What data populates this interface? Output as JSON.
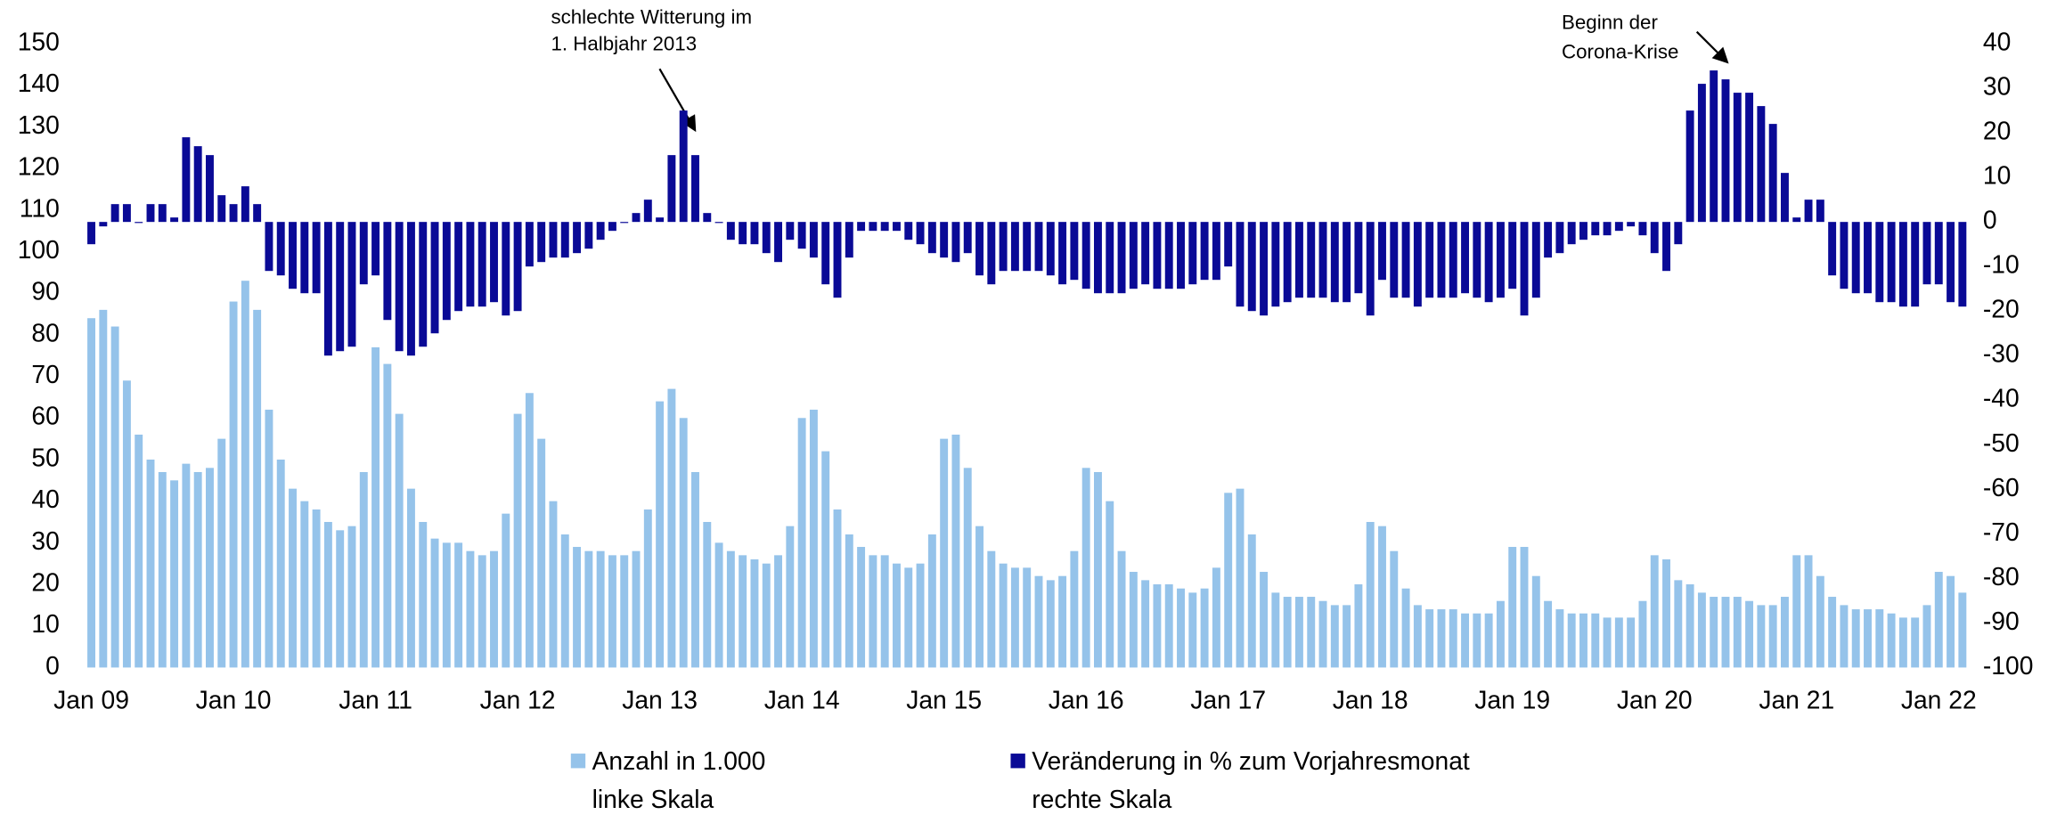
{
  "chart_data": {
    "type": "bar",
    "categories": [
      "Jan 09",
      null,
      null,
      null,
      null,
      null,
      null,
      null,
      null,
      null,
      null,
      null,
      "Jan 10",
      null,
      null,
      null,
      null,
      null,
      null,
      null,
      null,
      null,
      null,
      null,
      "Jan 11",
      null,
      null,
      null,
      null,
      null,
      null,
      null,
      null,
      null,
      null,
      null,
      "Jan 12",
      null,
      null,
      null,
      null,
      null,
      null,
      null,
      null,
      null,
      null,
      null,
      "Jan 13",
      null,
      null,
      null,
      null,
      null,
      null,
      null,
      null,
      null,
      null,
      null,
      "Jan 14",
      null,
      null,
      null,
      null,
      null,
      null,
      null,
      null,
      null,
      null,
      null,
      "Jan 15",
      null,
      null,
      null,
      null,
      null,
      null,
      null,
      null,
      null,
      null,
      null,
      "Jan 16",
      null,
      null,
      null,
      null,
      null,
      null,
      null,
      null,
      null,
      null,
      null,
      "Jan 17",
      null,
      null,
      null,
      null,
      null,
      null,
      null,
      null,
      null,
      null,
      null,
      "Jan 18",
      null,
      null,
      null,
      null,
      null,
      null,
      null,
      null,
      null,
      null,
      null,
      "Jan 19",
      null,
      null,
      null,
      null,
      null,
      null,
      null,
      null,
      null,
      null,
      null,
      "Jan 20",
      null,
      null,
      null,
      null,
      null,
      null,
      null,
      null,
      null,
      null,
      null,
      "Jan 21",
      null,
      null,
      null,
      null,
      null,
      null,
      null,
      null,
      null,
      null,
      null,
      "Jan 22",
      null,
      null
    ],
    "series": [
      {
        "name": "Anzahl in 1.000",
        "scale_note": "linke Skala",
        "color": "#95c3ea",
        "axis": "y",
        "values": [
          84,
          86,
          82,
          69,
          56,
          50,
          47,
          45,
          49,
          47,
          48,
          55,
          88,
          93,
          86,
          62,
          50,
          43,
          40,
          38,
          35,
          33,
          34,
          47,
          77,
          73,
          61,
          43,
          35,
          31,
          30,
          30,
          28,
          27,
          28,
          37,
          61,
          66,
          55,
          40,
          32,
          29,
          28,
          28,
          27,
          27,
          28,
          38,
          64,
          67,
          60,
          47,
          35,
          30,
          28,
          27,
          26,
          25,
          27,
          34,
          60,
          62,
          52,
          38,
          32,
          29,
          27,
          27,
          25,
          24,
          25,
          32,
          55,
          56,
          48,
          34,
          28,
          25,
          24,
          24,
          22,
          21,
          22,
          28,
          48,
          47,
          40,
          28,
          23,
          21,
          20,
          20,
          19,
          18,
          19,
          24,
          42,
          43,
          32,
          23,
          18,
          17,
          17,
          17,
          16,
          15,
          15,
          20,
          35,
          34,
          28,
          19,
          15,
          14,
          14,
          14,
          13,
          13,
          13,
          16,
          29,
          29,
          22,
          16,
          14,
          13,
          13,
          13,
          12,
          12,
          12,
          16,
          27,
          26,
          21,
          20,
          18,
          17,
          17,
          17,
          16,
          15,
          15,
          17,
          27,
          27,
          22,
          17,
          15,
          14,
          14,
          14,
          13,
          12,
          12,
          15,
          23,
          22,
          18
        ]
      },
      {
        "name": "Veränderung in % zum Vorjahresmonat",
        "scale_note": "rechte Skala",
        "color": "#0a0a96",
        "axis": "y2",
        "values": [
          -5,
          -1,
          4,
          4,
          0,
          4,
          4,
          1,
          19,
          17,
          15,
          6,
          4,
          8,
          4,
          -11,
          -12,
          -15,
          -16,
          -16,
          -30,
          -29,
          -28,
          -14,
          -12,
          -22,
          -29,
          -30,
          -28,
          -25,
          -22,
          -20,
          -19,
          -19,
          -18,
          -21,
          -20,
          -10,
          -9,
          -8,
          -8,
          -7,
          -6,
          -4,
          -2,
          0,
          2,
          5,
          1,
          15,
          25,
          15,
          2,
          0,
          -4,
          -5,
          -5,
          -7,
          -9,
          -4,
          -6,
          -8,
          -14,
          -17,
          -8,
          -2,
          -2,
          -2,
          -2,
          -4,
          -5,
          -7,
          -8,
          -9,
          -7,
          -12,
          -14,
          -11,
          -11,
          -11,
          -11,
          -12,
          -14,
          -13,
          -15,
          -16,
          -16,
          -16,
          -15,
          -14,
          -15,
          -15,
          -15,
          -14,
          -13,
          -13,
          -10,
          -19,
          -20,
          -21,
          -19,
          -18,
          -17,
          -17,
          -17,
          -18,
          -18,
          -16,
          -21,
          -13,
          -17,
          -17,
          -19,
          -17,
          -17,
          -17,
          -16,
          -17,
          -18,
          -17,
          -15,
          -21,
          -17,
          -8,
          -7,
          -5,
          -4,
          -3,
          -3,
          -2,
          -1,
          -3,
          -7,
          -11,
          -5,
          25,
          31,
          34,
          32,
          29,
          29,
          26,
          22,
          11,
          1,
          5,
          5,
          -12,
          -15,
          -16,
          -16,
          -18,
          -18,
          -19,
          -19,
          -14,
          -14,
          -18,
          -19
        ]
      }
    ],
    "ylim": [
      0,
      150
    ],
    "yticks": [
      0,
      10,
      20,
      30,
      40,
      50,
      60,
      70,
      80,
      90,
      100,
      110,
      120,
      130,
      140,
      150
    ],
    "y2lim": [
      -100,
      40
    ],
    "y2ticks": [
      -100,
      -90,
      -80,
      -70,
      -60,
      -50,
      -40,
      -30,
      -20,
      -10,
      0,
      10,
      20,
      30,
      40
    ],
    "annotations": [
      {
        "lines": [
          "schlechte Witterung im",
          "1. Halbjahr 2013"
        ]
      },
      {
        "lines": [
          "Beginn der",
          "Corona-Krise"
        ]
      }
    ],
    "legend": "bottom"
  }
}
